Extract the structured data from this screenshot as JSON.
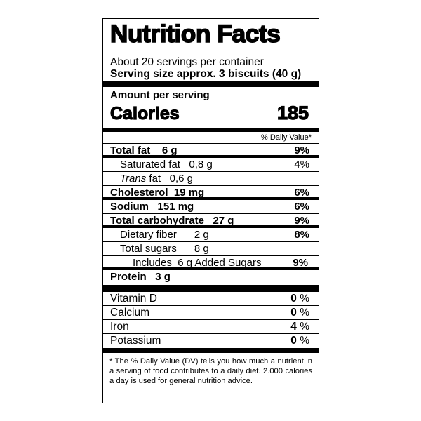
{
  "title": "Nutrition Facts",
  "servings_per_container": "About 20 servings per container",
  "serving_size": "Serving size approx.  3 biscuits (40 g)",
  "amount_per_serving": "Amount per serving",
  "calories_label": "Calories",
  "calories_value": "185",
  "daily_value_header": "% Daily Value*",
  "nutrients": [
    {
      "label": "Total fat",
      "amount": "6 g",
      "dv": "9%"
    },
    {
      "label": "Saturated fat",
      "amount": "0,8 g",
      "dv": "4%"
    },
    {
      "label_italic": "Trans",
      "label": " fat",
      "amount": "0,6 g",
      "dv": ""
    },
    {
      "label": "Cholesterol",
      "amount": "19 mg",
      "dv": "6%"
    },
    {
      "label": "Sodium",
      "amount": "151 mg",
      "dv": "6%"
    },
    {
      "label": "Total carbohydrate",
      "amount": "27 g",
      "dv": "9%"
    },
    {
      "label": "Dietary fiber",
      "amount": "2 g",
      "dv": "8%"
    },
    {
      "label": "Total sugars",
      "amount": "8 g",
      "dv": ""
    },
    {
      "label": "Includes",
      "amount": "6 g Added Sugars",
      "dv": "9%"
    },
    {
      "label": "Protein",
      "amount": "3 g",
      "dv": ""
    }
  ],
  "vitamins": [
    {
      "label": "Vitamin D",
      "dv_num": "0",
      "dv_unit": " %"
    },
    {
      "label": "Calcium",
      "dv_num": "0",
      "dv_unit": " %"
    },
    {
      "label": "Iron",
      "dv_num": "4",
      "dv_unit": " %"
    },
    {
      "label": "Potassium",
      "dv_num": "0",
      "dv_unit": " %"
    }
  ],
  "footnote": "* The % Daily Value (DV) tells you how much a nutrient in a serving of food contributes to a daily diet. 2.000 calories a day is used for general nutrition advice."
}
